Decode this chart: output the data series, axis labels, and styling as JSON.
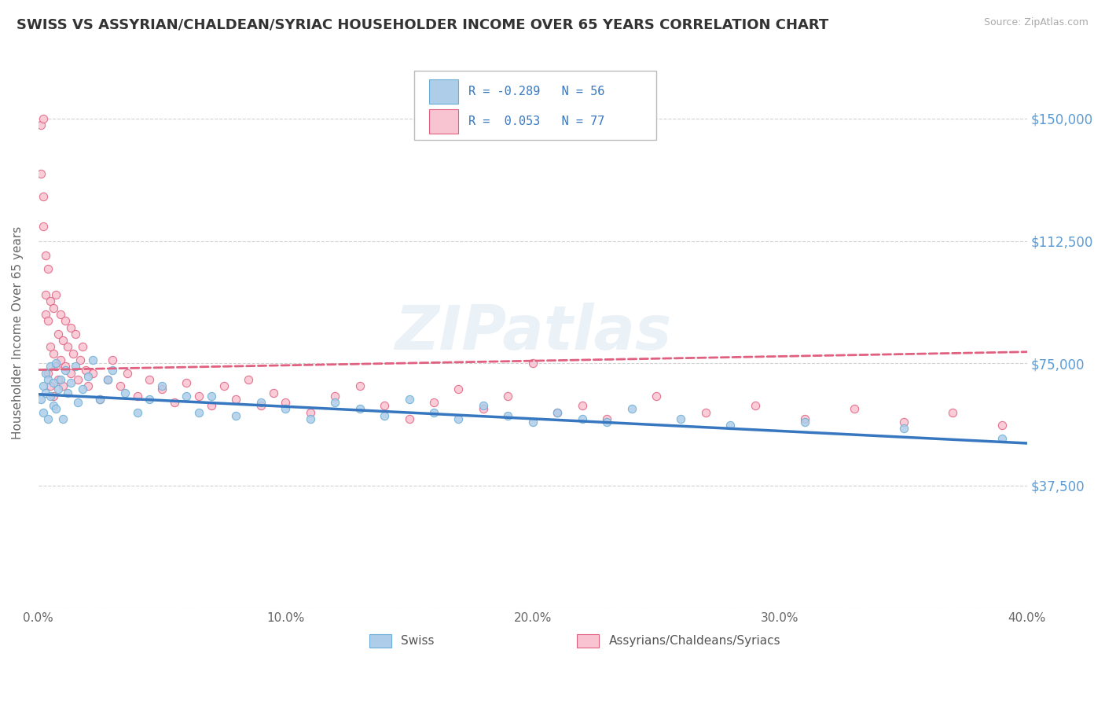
{
  "title": "SWISS VS ASSYRIAN/CHALDEAN/SYRIAC HOUSEHOLDER INCOME OVER 65 YEARS CORRELATION CHART",
  "source": "Source: ZipAtlas.com",
  "ylabel": "Householder Income Over 65 years",
  "xlim": [
    0.0,
    0.4
  ],
  "ylim": [
    0,
    168750
  ],
  "yticks": [
    0,
    37500,
    75000,
    112500,
    150000
  ],
  "ytick_labels": [
    "",
    "$37,500",
    "$75,000",
    "$112,500",
    "$150,000"
  ],
  "xtick_labels": [
    "0.0%",
    "",
    "10.0%",
    "",
    "20.0%",
    "",
    "30.0%",
    "",
    "40.0%"
  ],
  "xticks": [
    0.0,
    0.05,
    0.1,
    0.15,
    0.2,
    0.25,
    0.3,
    0.35,
    0.4
  ],
  "swiss_color": "#6baed6",
  "assyrian_color": "#fc9cb4",
  "swiss_scatter_color": "#aecde8",
  "assyrian_scatter_color": "#f9c4d2",
  "trend_blue": "#3777c0",
  "trend_pink": "#e06080",
  "background_color": "#ffffff",
  "watermark": "ZIPatlas",
  "title_fontsize": 13,
  "swiss_x": [
    0.001,
    0.002,
    0.002,
    0.003,
    0.003,
    0.004,
    0.004,
    0.005,
    0.005,
    0.006,
    0.006,
    0.007,
    0.007,
    0.008,
    0.009,
    0.01,
    0.011,
    0.012,
    0.013,
    0.015,
    0.016,
    0.018,
    0.02,
    0.022,
    0.025,
    0.028,
    0.03,
    0.035,
    0.04,
    0.045,
    0.05,
    0.06,
    0.065,
    0.07,
    0.08,
    0.09,
    0.1,
    0.11,
    0.12,
    0.13,
    0.14,
    0.15,
    0.16,
    0.17,
    0.18,
    0.19,
    0.2,
    0.21,
    0.22,
    0.23,
    0.24,
    0.26,
    0.28,
    0.31,
    0.35,
    0.39
  ],
  "swiss_y": [
    64000,
    68000,
    60000,
    72000,
    66000,
    70000,
    58000,
    65000,
    74000,
    62000,
    69000,
    61000,
    75000,
    67000,
    70000,
    58000,
    73000,
    66000,
    69000,
    74000,
    63000,
    67000,
    71000,
    76000,
    64000,
    70000,
    73000,
    66000,
    60000,
    64000,
    68000,
    65000,
    60000,
    65000,
    59000,
    63000,
    61000,
    58000,
    63000,
    61000,
    59000,
    64000,
    60000,
    58000,
    62000,
    59000,
    57000,
    60000,
    58000,
    57000,
    61000,
    58000,
    56000,
    57000,
    55000,
    52000
  ],
  "assyrian_x": [
    0.001,
    0.001,
    0.002,
    0.002,
    0.002,
    0.003,
    0.003,
    0.003,
    0.004,
    0.004,
    0.004,
    0.005,
    0.005,
    0.005,
    0.006,
    0.006,
    0.006,
    0.007,
    0.007,
    0.008,
    0.008,
    0.009,
    0.009,
    0.01,
    0.01,
    0.011,
    0.011,
    0.012,
    0.013,
    0.013,
    0.014,
    0.015,
    0.016,
    0.017,
    0.018,
    0.019,
    0.02,
    0.022,
    0.025,
    0.028,
    0.03,
    0.033,
    0.036,
    0.04,
    0.045,
    0.05,
    0.055,
    0.06,
    0.065,
    0.07,
    0.075,
    0.08,
    0.085,
    0.09,
    0.095,
    0.1,
    0.11,
    0.12,
    0.13,
    0.14,
    0.15,
    0.16,
    0.17,
    0.18,
    0.19,
    0.2,
    0.21,
    0.22,
    0.23,
    0.25,
    0.27,
    0.29,
    0.31,
    0.33,
    0.35,
    0.37,
    0.39
  ],
  "assyrian_y": [
    148000,
    133000,
    126000,
    117000,
    150000,
    108000,
    96000,
    90000,
    104000,
    88000,
    72000,
    94000,
    80000,
    68000,
    92000,
    78000,
    65000,
    96000,
    74000,
    84000,
    70000,
    90000,
    76000,
    82000,
    68000,
    88000,
    74000,
    80000,
    86000,
    72000,
    78000,
    84000,
    70000,
    76000,
    80000,
    73000,
    68000,
    72000,
    64000,
    70000,
    76000,
    68000,
    72000,
    65000,
    70000,
    67000,
    63000,
    69000,
    65000,
    62000,
    68000,
    64000,
    70000,
    62000,
    66000,
    63000,
    60000,
    65000,
    68000,
    62000,
    58000,
    63000,
    67000,
    61000,
    65000,
    75000,
    60000,
    62000,
    58000,
    65000,
    60000,
    62000,
    58000,
    61000,
    57000,
    60000,
    56000
  ],
  "swiss_trend_x": [
    0.0,
    0.4
  ],
  "swiss_trend_y": [
    65500,
    50500
  ],
  "assyrian_trend_x": [
    0.0,
    0.4
  ],
  "assyrian_trend_y": [
    73000,
    78500
  ]
}
